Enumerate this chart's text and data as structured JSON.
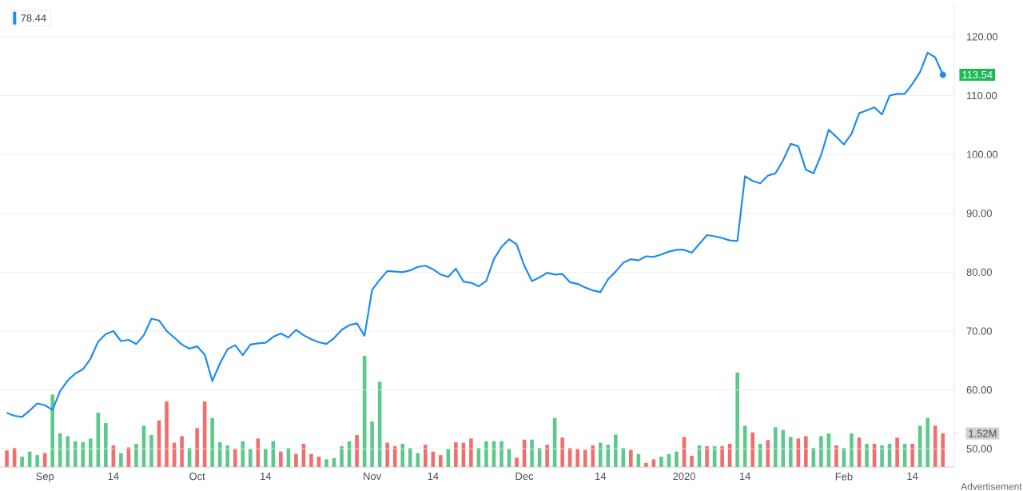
{
  "chart_data": {
    "type": "line",
    "categories": [
      null,
      null,
      null,
      null,
      null,
      "Sep",
      null,
      null,
      null,
      null,
      null,
      null,
      null,
      null,
      "14",
      null,
      null,
      null,
      null,
      null,
      null,
      null,
      null,
      null,
      null,
      "Oct",
      null,
      null,
      null,
      null,
      null,
      null,
      null,
      null,
      "14",
      null,
      null,
      null,
      null,
      null,
      null,
      null,
      null,
      null,
      null,
      null,
      null,
      null,
      "Nov",
      null,
      null,
      null,
      null,
      null,
      null,
      null,
      "14",
      null,
      null,
      null,
      null,
      null,
      null,
      null,
      null,
      null,
      null,
      null,
      "Dec",
      null,
      null,
      null,
      null,
      null,
      null,
      null,
      null,
      null,
      "14",
      null,
      null,
      null,
      null,
      null,
      null,
      null,
      null,
      null,
      null,
      "2020",
      null,
      null,
      null,
      null,
      null,
      null,
      null,
      "14",
      null,
      null,
      null,
      null,
      null,
      null,
      null,
      null,
      null,
      null,
      null,
      null,
      "Feb",
      null,
      null,
      null,
      null,
      null,
      null,
      null,
      null,
      "14",
      null,
      null,
      null,
      null
    ],
    "series": [
      {
        "name": "78.44",
        "color": "#1e8cf0",
        "value_labels": [
          null,
          null,
          null,
          null,
          null,
          null,
          null,
          null,
          null,
          null,
          null,
          null,
          null,
          null,
          null,
          null,
          null,
          null,
          null,
          null,
          null,
          null,
          null,
          null,
          null,
          null,
          null,
          null,
          null,
          null,
          null,
          null,
          null,
          null,
          null,
          null,
          null,
          null,
          null,
          null,
          null,
          null,
          null,
          null,
          null,
          null,
          null,
          null,
          null,
          null,
          null,
          null,
          null,
          null,
          null,
          null,
          null,
          null,
          null,
          null,
          null,
          null,
          null,
          null,
          null,
          null,
          null,
          null,
          null,
          null,
          null,
          null,
          null,
          null,
          null,
          null,
          null,
          null,
          null,
          null,
          null,
          null,
          null,
          null,
          null,
          null,
          null,
          null,
          null,
          null,
          null,
          null,
          null,
          null,
          null,
          null,
          null,
          null,
          null,
          null,
          null,
          null,
          null,
          null,
          null,
          null,
          null,
          null,
          null,
          null,
          null,
          null,
          null,
          null,
          null,
          null,
          null,
          null,
          null,
          null,
          null,
          null,
          null,
          "113.54"
        ],
        "values": [
          56.1,
          55.6,
          55.4,
          56.5,
          57.7,
          57.4,
          56.6,
          59.8,
          61.6,
          62.8,
          63.5,
          65.3,
          68.2,
          69.5,
          70.0,
          68.3,
          68.5,
          67.8,
          69.3,
          72.1,
          71.8,
          70.0,
          68.9,
          67.7,
          67.0,
          67.4,
          66.0,
          61.5,
          64.5,
          66.9,
          67.6,
          65.9,
          67.7,
          67.9,
          68.0,
          69.0,
          69.6,
          68.9,
          70.2,
          69.3,
          68.6,
          68.1,
          67.8,
          68.8,
          70.2,
          71.0,
          71.3,
          69.2,
          77.0,
          78.7,
          80.2,
          80.1,
          80.0,
          80.3,
          80.9,
          81.1,
          80.5,
          79.6,
          79.2,
          80.6,
          78.4,
          78.2,
          77.6,
          78.5,
          82.2,
          84.3,
          85.6,
          84.7,
          81.1,
          78.5,
          79.1,
          79.9,
          79.6,
          79.7,
          78.3,
          78.0,
          77.4,
          76.9,
          76.6,
          78.8,
          80.1,
          81.6,
          82.2,
          82.0,
          82.7,
          82.6,
          83.0,
          83.5,
          83.8,
          83.8,
          83.3,
          84.8,
          86.3,
          86.1,
          85.8,
          85.4,
          85.3,
          96.3,
          95.5,
          95.1,
          96.4,
          96.8,
          99.0,
          101.8,
          101.4,
          97.4,
          96.8,
          99.9,
          104.2,
          103.0,
          101.7,
          103.5,
          107.0,
          107.5,
          108.0,
          106.8,
          110.0,
          110.3,
          110.3,
          112.0,
          114.0,
          117.3,
          116.5,
          113.54
        ]
      },
      {
        "type": "bar",
        "axis": "y2",
        "values": [
          0.75,
          0.87,
          0.47,
          0.7,
          0.54,
          0.63,
          3.28,
          1.52,
          1.4,
          1.17,
          1.12,
          1.29,
          2.46,
          1.99,
          0.98,
          0.63,
          0.89,
          1.05,
          1.87,
          1.45,
          2.11,
          2.97,
          1.1,
          1.4,
          0.87,
          1.76,
          2.97,
          2.22,
          1.12,
          0.98,
          0.82,
          1.17,
          0.82,
          1.29,
          0.82,
          1.17,
          0.7,
          0.87,
          0.59,
          1.05,
          0.59,
          0.47,
          0.35,
          0.4,
          0.94,
          1.17,
          1.45,
          5.03,
          2.06,
          3.86,
          1.1,
          0.94,
          1.05,
          0.87,
          0.63,
          1.01,
          0.7,
          0.54,
          0.82,
          1.12,
          1.1,
          1.29,
          0.87,
          1.17,
          1.17,
          1.17,
          0.82,
          0.42,
          1.24,
          1.24,
          0.87,
          1.01,
          2.22,
          1.33,
          0.87,
          0.82,
          0.77,
          0.98,
          1.1,
          1.01,
          1.47,
          0.87,
          0.77,
          0.59,
          0.19,
          0.35,
          0.47,
          0.59,
          0.7,
          1.36,
          0.51,
          0.98,
          0.94,
          0.94,
          0.94,
          1.05,
          4.28,
          1.87,
          1.57,
          1.05,
          1.22,
          1.8,
          1.68,
          1.36,
          1.29,
          1.4,
          0.87,
          1.4,
          1.52,
          0.98,
          0.87,
          1.52,
          1.33,
          1.05,
          1.05,
          0.98,
          1.05,
          1.33,
          1.05,
          1.05,
          1.87,
          2.22,
          1.87,
          1.52
        ],
        "colors": [
          "#f26d6d",
          "#f26d6d",
          "#5cc98b",
          "#5cc98b",
          "#5cc98b",
          "#f26d6d",
          "#5cc98b",
          "#5cc98b",
          "#5cc98b",
          "#5cc98b",
          "#5cc98b",
          "#5cc98b",
          "#5cc98b",
          "#5cc98b",
          "#f26d6d",
          "#5cc98b",
          "#f26d6d",
          "#5cc98b",
          "#5cc98b",
          "#5cc98b",
          "#f26d6d",
          "#f26d6d",
          "#f26d6d",
          "#f26d6d",
          "#5cc98b",
          "#f26d6d",
          "#f26d6d",
          "#5cc98b",
          "#5cc98b",
          "#5cc98b",
          "#f26d6d",
          "#5cc98b",
          "#5cc98b",
          "#f26d6d",
          "#5cc98b",
          "#5cc98b",
          "#f26d6d",
          "#5cc98b",
          "#f26d6d",
          "#f26d6d",
          "#f26d6d",
          "#f26d6d",
          "#5cc98b",
          "#5cc98b",
          "#5cc98b",
          "#5cc98b",
          "#f26d6d",
          "#5cc98b",
          "#5cc98b",
          "#5cc98b",
          "#f26d6d",
          "#f26d6d",
          "#5cc98b",
          "#5cc98b",
          "#5cc98b",
          "#f26d6d",
          "#f26d6d",
          "#f26d6d",
          "#5cc98b",
          "#f26d6d",
          "#f26d6d",
          "#f26d6d",
          "#5cc98b",
          "#5cc98b",
          "#5cc98b",
          "#5cc98b",
          "#5cc98b",
          "#f26d6d",
          "#f26d6d",
          "#5cc98b",
          "#5cc98b",
          "#f26d6d",
          "#5cc98b",
          "#f26d6d",
          "#f26d6d",
          "#f26d6d",
          "#f26d6d",
          "#f26d6d",
          "#5cc98b",
          "#5cc98b",
          "#5cc98b",
          "#5cc98b",
          "#f26d6d",
          "#5cc98b",
          "#f26d6d",
          "#f26d6d",
          "#5cc98b",
          "#5cc98b",
          "#5cc98b",
          "#f26d6d",
          "#f26d6d",
          "#5cc98b",
          "#f26d6d",
          "#5cc98b",
          "#f26d6d",
          "#f26d6d",
          "#5cc98b",
          "#5cc98b",
          "#f26d6d",
          "#5cc98b",
          "#f26d6d",
          "#5cc98b",
          "#5cc98b",
          "#5cc98b",
          "#f26d6d",
          "#f26d6d",
          "#5cc98b",
          "#5cc98b",
          "#5cc98b",
          "#f26d6d",
          "#5cc98b",
          "#5cc98b",
          "#f26d6d",
          "#5cc98b",
          "#f26d6d",
          "#5cc98b",
          "#5cc98b",
          "#f26d6d",
          "#5cc98b",
          "#f26d6d",
          "#5cc98b",
          "#5cc98b",
          "#f26d6d",
          "#f26d6d"
        ]
      }
    ],
    "ylim": [
      46.9,
      125.7
    ],
    "yticks": [
      {
        "value": 50,
        "label": "50.00"
      },
      {
        "value": 60,
        "label": "60.00"
      },
      {
        "value": 70,
        "label": "70.00"
      },
      {
        "value": 80,
        "label": "80.00"
      },
      {
        "value": 90,
        "label": "90.00"
      },
      {
        "value": 100,
        "label": "100.00"
      },
      {
        "value": 110,
        "label": "110.00"
      },
      {
        "value": 120,
        "label": "120.00"
      }
    ],
    "y2lim": [
      0,
      21
    ],
    "y2ticks": [
      {
        "value": 1.52,
        "label": "1.52M"
      }
    ],
    "grid": "y",
    "legend": "top left",
    "annotations": [
      "Advertisement"
    ]
  }
}
